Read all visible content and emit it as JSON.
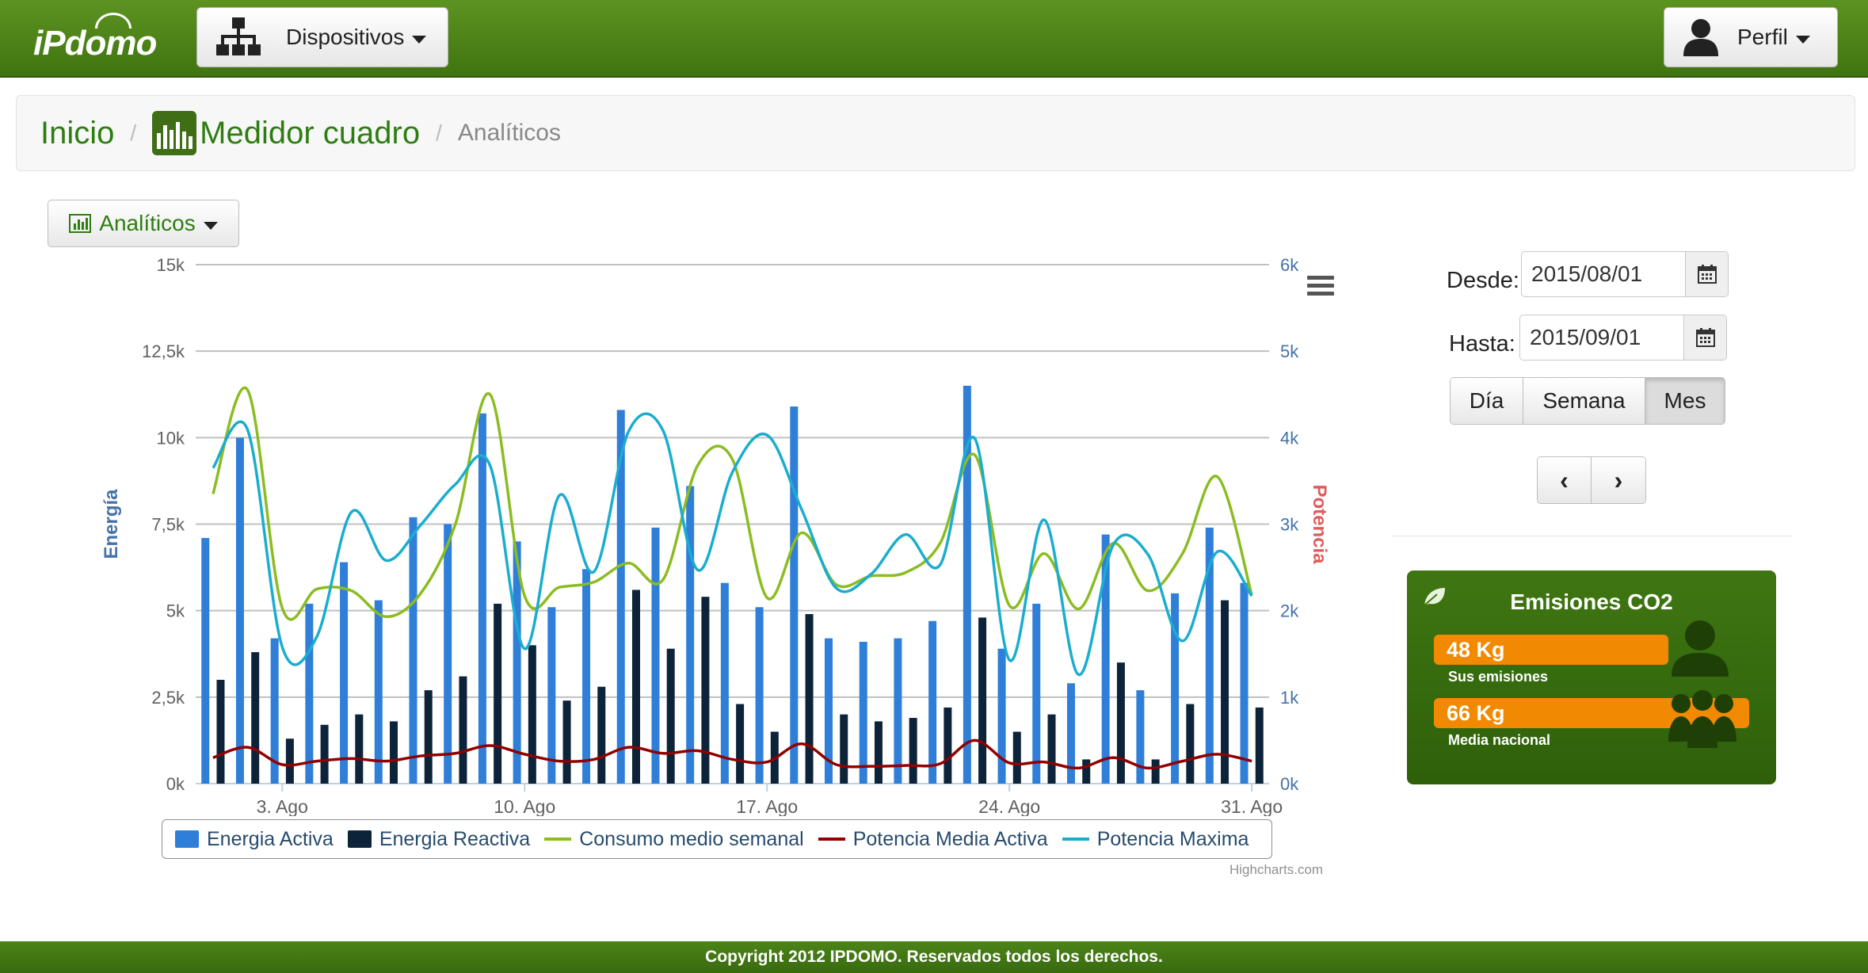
{
  "header": {
    "logo": "iPdomo",
    "devices_label": "Dispositivos",
    "profile_label": "Perfil"
  },
  "breadcrumb": {
    "home": "Inicio",
    "device": "Medidor cuadro",
    "current": "Analíticos",
    "separator": "/"
  },
  "toolbar": {
    "analytics_label": "Analíticos"
  },
  "filters": {
    "from_label": "Desde:",
    "from_value": "2015/08/01",
    "to_label": "Hasta:",
    "to_value": "2015/09/01",
    "ranges": [
      "Día",
      "Semana",
      "Mes"
    ],
    "active_range": "Mes",
    "prev": "‹",
    "next": "›"
  },
  "co2": {
    "title": "Emisiones CO2",
    "yours_value": "48 Kg",
    "yours_label": "Sus emisiones",
    "national_value": "66 Kg",
    "national_label": "Media nacional"
  },
  "footer": {
    "text": "Copyright 2012 IPDOMO. Reservados todos los derechos."
  },
  "colors": {
    "brand_green": "#4a8518",
    "activa": "#2f7ed8",
    "reactiva": "#0d233a",
    "consumo": "#8bbc21",
    "potencia_media": "#910000",
    "potencia_max": "#1aadce",
    "co2_bar": "#f18a00"
  },
  "chart_data": {
    "type": "bar",
    "credits": "Highcharts.com",
    "ylabel": "Energía",
    "y2label": "Potencia",
    "ylim": [
      0,
      15000
    ],
    "y2lim": [
      0,
      6000
    ],
    "yticks": [
      "0k",
      "2,5k",
      "5k",
      "7,5k",
      "10k",
      "12,5k",
      "15k"
    ],
    "y2ticks": [
      "0k",
      "1k",
      "2k",
      "3k",
      "4k",
      "5k",
      "6k"
    ],
    "xtick_labels": [
      {
        "day": 3,
        "label": "3. Ago"
      },
      {
        "day": 10,
        "label": "10. Ago"
      },
      {
        "day": 17,
        "label": "17. Ago"
      },
      {
        "day": 24,
        "label": "24. Ago"
      },
      {
        "day": 31,
        "label": "31. Ago"
      }
    ],
    "x": [
      1,
      2,
      3,
      4,
      5,
      6,
      7,
      8,
      9,
      10,
      11,
      12,
      13,
      14,
      15,
      16,
      17,
      18,
      19,
      20,
      21,
      22,
      23,
      24,
      25,
      26,
      27,
      28,
      29,
      30,
      31
    ],
    "series": [
      {
        "name": "Energia Activa",
        "type": "bar",
        "axis": "left",
        "values": [
          7100,
          10000,
          4200,
          5200,
          6400,
          5300,
          7700,
          7500,
          10700,
          7000,
          5100,
          6200,
          10800,
          7400,
          8600,
          5800,
          5100,
          10900,
          4200,
          4100,
          4200,
          4700,
          11500,
          3900,
          5200,
          2900,
          7200,
          2700,
          5500,
          7400,
          5800
        ]
      },
      {
        "name": "Energia Reactiva",
        "type": "bar",
        "axis": "left",
        "values": [
          3000,
          3800,
          1300,
          1700,
          2000,
          1800,
          2700,
          3100,
          5200,
          4000,
          2400,
          2800,
          5600,
          3900,
          5400,
          2300,
          1500,
          4900,
          2000,
          1800,
          1900,
          2200,
          4800,
          1500,
          2000,
          700,
          3500,
          700,
          2300,
          5300,
          2200
        ]
      },
      {
        "name": "Consumo medio semanal",
        "type": "line",
        "axis": "right",
        "values": [
          3350,
          4550,
          2030,
          2250,
          2230,
          1930,
          2200,
          3000,
          4500,
          2170,
          2270,
          2330,
          2550,
          2360,
          3680,
          3750,
          2150,
          2900,
          2300,
          2400,
          2440,
          2780,
          3800,
          2060,
          2660,
          2020,
          2780,
          2230,
          2660,
          3550,
          2180
        ]
      },
      {
        "name": "Potencia Media Activa",
        "type": "line",
        "axis": "right",
        "values": [
          300,
          420,
          220,
          260,
          290,
          260,
          320,
          350,
          440,
          340,
          260,
          280,
          420,
          350,
          380,
          280,
          250,
          460,
          220,
          200,
          210,
          230,
          500,
          240,
          250,
          180,
          300,
          180,
          260,
          340,
          260
        ]
      },
      {
        "name": "Potencia Maxima",
        "type": "line",
        "axis": "right",
        "values": [
          3650,
          4090,
          1580,
          1700,
          3140,
          2580,
          2990,
          3460,
          3680,
          1560,
          3330,
          2450,
          4070,
          4080,
          2470,
          3600,
          4030,
          3170,
          2260,
          2420,
          2880,
          2530,
          3990,
          1430,
          3050,
          1260,
          2760,
          2650,
          1650,
          2680,
          2170
        ]
      }
    ]
  }
}
